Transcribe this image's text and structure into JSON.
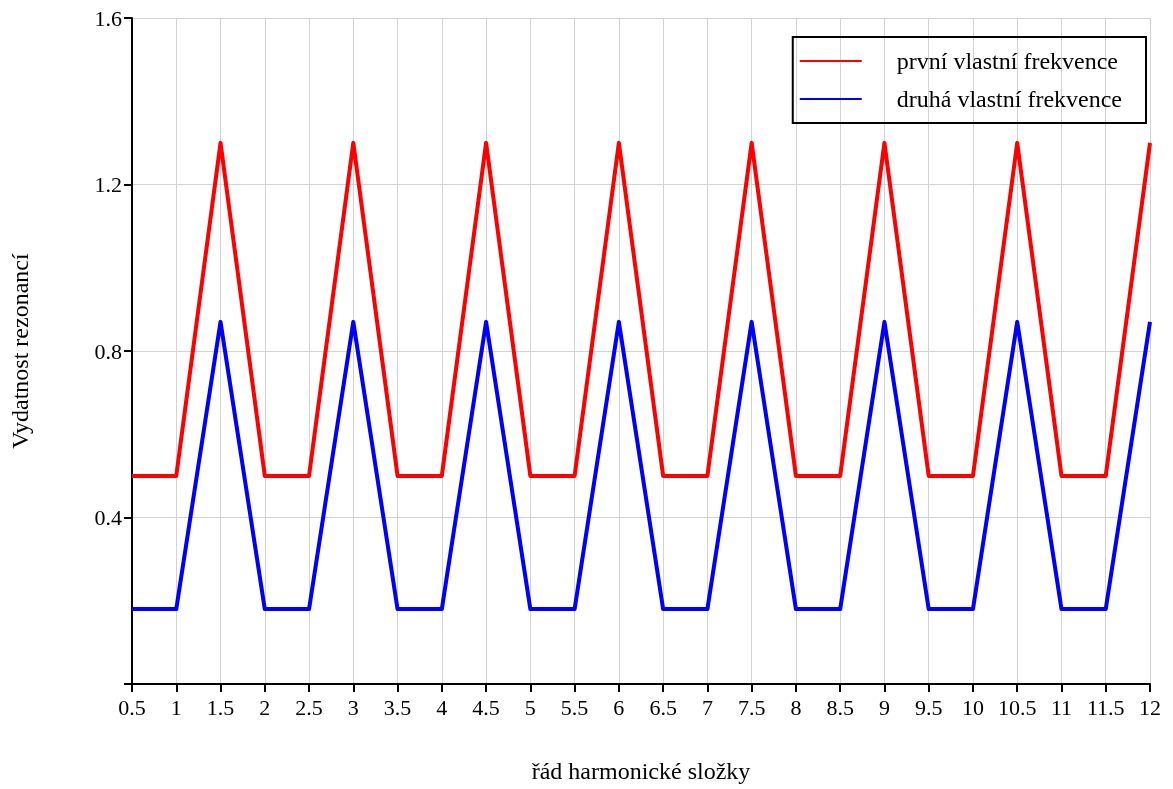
{
  "chart_data": {
    "type": "line",
    "xlabel": "řád harmonické složky",
    "ylabel": "Vydatnost rezonancí",
    "x": [
      0.5,
      1,
      1.5,
      2,
      2.5,
      3,
      3.5,
      4,
      4.5,
      5,
      5.5,
      6,
      6.5,
      7,
      7.5,
      8,
      8.5,
      9,
      9.5,
      10,
      10.5,
      11,
      11.5,
      12
    ],
    "series": [
      {
        "name": "první vlastní frekvence",
        "color": "#ff0000",
        "values": [
          0.5,
          0.5,
          1.3,
          0.5,
          0.5,
          1.3,
          0.5,
          0.5,
          1.3,
          0.5,
          0.5,
          1.3,
          0.5,
          0.5,
          1.3,
          0.5,
          0.5,
          1.3,
          0.5,
          0.5,
          1.3,
          0.5,
          0.5,
          1.3
        ]
      },
      {
        "name": "druhá vlastní frekvence",
        "color": "#0000ff",
        "values": [
          0.18,
          0.18,
          0.87,
          0.18,
          0.18,
          0.87,
          0.18,
          0.18,
          0.87,
          0.18,
          0.18,
          0.87,
          0.18,
          0.18,
          0.87,
          0.18,
          0.18,
          0.87,
          0.18,
          0.18,
          0.87,
          0.18,
          0.18,
          0.87
        ]
      }
    ],
    "xlim": [
      0.5,
      12
    ],
    "xticks": [
      0.5,
      1,
      1.5,
      2,
      2.5,
      3,
      3.5,
      4,
      4.5,
      5,
      5.5,
      6,
      6.5,
      7,
      7.5,
      8,
      8.5,
      9,
      9.5,
      10,
      10.5,
      11,
      11.5,
      12
    ],
    "ylim": [
      0,
      1.6
    ],
    "yticks": [
      {
        "value": 0,
        "label": null
      },
      0.4,
      0.8,
      1.2,
      1.6
    ],
    "grid": true,
    "legend": "top right",
    "marker": "none",
    "line_style": "solid"
  }
}
